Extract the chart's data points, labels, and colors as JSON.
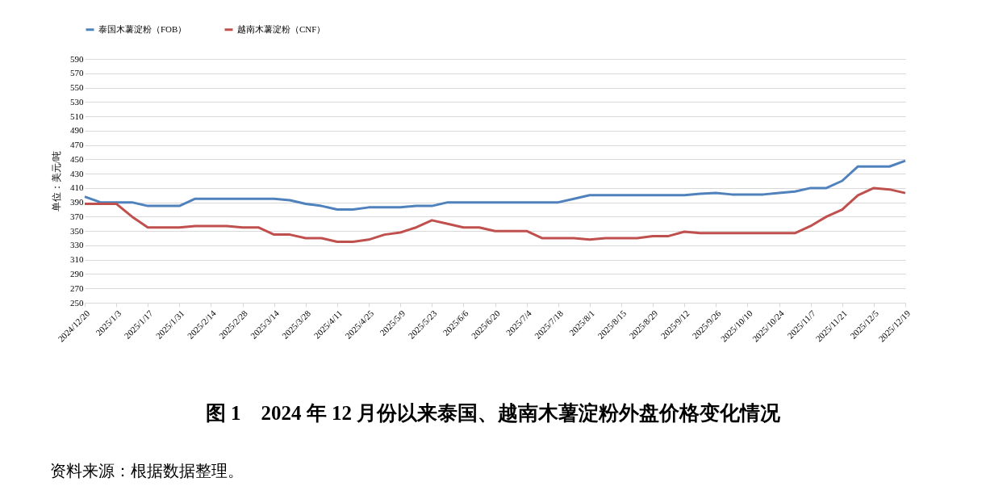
{
  "chart_data": {
    "type": "line",
    "title": "图 1　2024 年 12 月份以来泰国、越南木薯淀粉外盘价格变化情况",
    "ylabel": "单位：美元/吨",
    "categories": [
      "2024/12/20",
      null,
      "2025/1/3",
      null,
      "2025/1/17",
      null,
      "2025/1/31",
      null,
      "2025/2/14",
      null,
      "2025/2/28",
      null,
      "2025/3/14",
      null,
      "2025/3/28",
      null,
      "2025/4/11",
      null,
      "2025/4/25",
      null,
      "2025/5/9",
      null,
      "2025/5/23",
      null,
      "2025/6/6",
      null,
      "2025/6/20",
      null,
      "2025/7/4",
      null,
      "2025/7/18",
      null,
      "2025/8/1",
      null,
      "2025/8/15",
      null,
      "2025/8/29",
      null,
      "2025/9/12",
      null,
      "2025/9/26",
      null,
      "2025/10/10",
      null,
      "2025/10/24",
      null,
      "2025/11/7",
      null,
      "2025/11/21",
      null,
      "2025/12/5",
      null,
      "2025/12/19"
    ],
    "series": [
      {
        "name": "泰国木薯淀粉（FOB）",
        "color": "#4f81bd",
        "values": [
          398,
          390,
          390,
          390,
          385,
          385,
          385,
          395,
          395,
          395,
          395,
          395,
          395,
          393,
          388,
          385,
          380,
          380,
          383,
          383,
          383,
          385,
          385,
          390,
          390,
          390,
          390,
          390,
          390,
          390,
          390,
          395,
          400,
          400,
          400,
          400,
          400,
          400,
          400,
          402,
          403,
          401,
          401,
          401,
          403,
          405,
          410,
          410,
          420,
          440,
          440,
          440,
          448
        ]
      },
      {
        "name": "越南木薯淀粉（CNF）",
        "color": "#c0504d",
        "values": [
          388,
          388,
          388,
          370,
          355,
          355,
          355,
          357,
          357,
          357,
          355,
          355,
          345,
          345,
          340,
          340,
          335,
          335,
          338,
          345,
          348,
          355,
          365,
          360,
          355,
          355,
          350,
          350,
          350,
          340,
          340,
          340,
          338,
          340,
          340,
          340,
          343,
          343,
          349,
          347,
          347,
          347,
          347,
          347,
          347,
          347,
          357,
          370,
          380,
          400,
          410,
          408,
          403
        ]
      }
    ],
    "ylim": [
      250,
      590
    ],
    "yticks": [
      250,
      270,
      290,
      310,
      330,
      350,
      370,
      390,
      410,
      430,
      450,
      470,
      490,
      510,
      530,
      550,
      570,
      590
    ],
    "grid": "y",
    "legend": "top",
    "marker": "none",
    "line_style": "solid",
    "annotations": [
      "资料来源：根据数据整理。"
    ]
  }
}
